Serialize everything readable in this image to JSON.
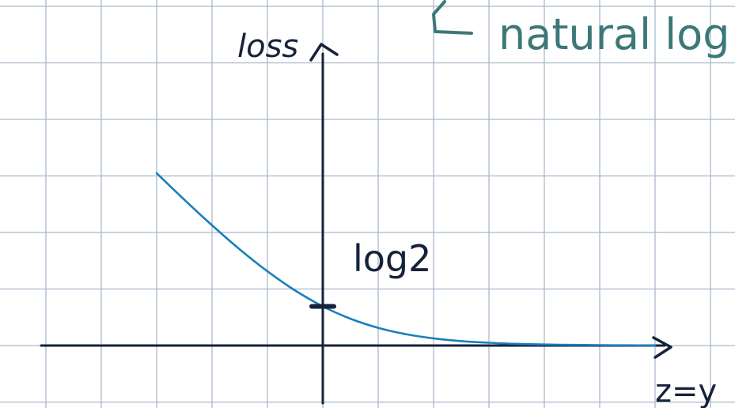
{
  "chart_data": {
    "type": "line",
    "title": "",
    "xlabel": "z=y",
    "ylabel": "loss",
    "annotations": [
      {
        "text": "log2",
        "x": 0,
        "y": 0.693
      },
      {
        "text": "natural log",
        "arrow": "left"
      }
    ],
    "xlim": [
      -3.57,
      6.2
    ],
    "ylim": [
      0,
      4.95
    ],
    "grid": true,
    "series": [
      {
        "name": "",
        "color": "#1a7fbd",
        "x": [
          -3,
          -2.5,
          -2,
          -1.5,
          -1,
          -0.5,
          0,
          0.5,
          1,
          1.5,
          2,
          2.5,
          3,
          3.5,
          4,
          4.5,
          5,
          5.5,
          6
        ],
        "y": [
          3.049,
          2.579,
          2.127,
          1.701,
          1.313,
          0.974,
          0.693,
          0.474,
          0.313,
          0.201,
          0.127,
          0.079,
          0.049,
          0.03,
          0.018,
          0.011,
          0.007,
          0.004,
          0.002
        ]
      }
    ]
  },
  "colors": {
    "grid": "#aab8cc",
    "axis": "#15223a",
    "curve": "#1a7fbd",
    "note": "#3d7878"
  }
}
